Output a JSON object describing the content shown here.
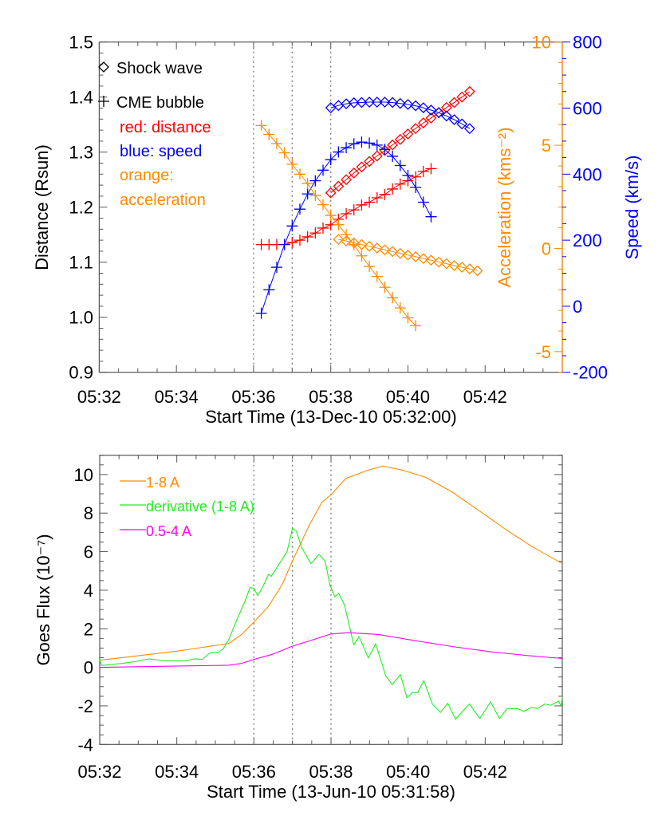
{
  "chart_data": [
    {
      "type": "scatter",
      "xlabel": "Start Time (13-Dec-10 05:32:00)",
      "x_unit": "minutes after 05:32:00",
      "xlim": [
        0,
        12
      ],
      "xticks": [
        {
          "v": 0,
          "label": "05:32"
        },
        {
          "v": 2,
          "label": "05:34"
        },
        {
          "v": 4,
          "label": "05:36"
        },
        {
          "v": 6,
          "label": "05:38"
        },
        {
          "v": 8,
          "label": "05:40"
        },
        {
          "v": 10,
          "label": "05:42"
        }
      ],
      "vlines": [
        4,
        5,
        6
      ],
      "axes": {
        "distance": {
          "label": "Distance (Rsun)",
          "lim": [
            0.9,
            1.5
          ],
          "ticks": [
            "0.9",
            "1.0",
            "1.1",
            "1.2",
            "1.3",
            "1.4",
            "1.5"
          ],
          "color": "#000000"
        },
        "acceleration": {
          "label": "Acceleration (kms⁻²)",
          "lim": [
            -6,
            10
          ],
          "ticks": [
            "-5",
            "0",
            "5",
            "10"
          ],
          "color": "#ff8a00"
        },
        "speed": {
          "label": "Speed (km/s)",
          "lim": [
            -200,
            800
          ],
          "ticks": [
            "-200",
            "0",
            "200",
            "400",
            "600",
            "800"
          ],
          "color": "#0000ff"
        }
      },
      "legend": {
        "shock": "Shock wave",
        "cme": "CME bubble",
        "red": "red: distance",
        "blue": "blue: speed",
        "orange1": "orange:",
        "orange2": "acceleration"
      },
      "series": [
        {
          "id": "cme-distance",
          "axis": "distance",
          "marker": "plus",
          "color": "#ff0000",
          "x": [
            4.2,
            4.4,
            4.6,
            4.8,
            5.0,
            5.2,
            5.4,
            5.6,
            5.8,
            6.0,
            6.2,
            6.4,
            6.6,
            6.8,
            7.0,
            7.2,
            7.4,
            7.6,
            7.8,
            8.0,
            8.2,
            8.4,
            8.6
          ],
          "y": [
            1.132,
            1.132,
            1.132,
            1.132,
            1.136,
            1.14,
            1.146,
            1.153,
            1.162,
            1.168,
            1.178,
            1.188,
            1.195,
            1.204,
            1.209,
            1.217,
            1.223,
            1.233,
            1.242,
            1.248,
            1.255,
            1.265,
            1.27
          ]
        },
        {
          "id": "shock-distance",
          "axis": "distance",
          "marker": "diamond",
          "color": "#ff0000",
          "x": [
            6.0,
            6.2,
            6.4,
            6.6,
            6.8,
            7.0,
            7.2,
            7.4,
            7.6,
            7.8,
            8.0,
            8.2,
            8.4,
            8.6,
            8.8,
            9.0,
            9.2,
            9.4,
            9.6
          ],
          "y": [
            1.226,
            1.238,
            1.25,
            1.262,
            1.273,
            1.283,
            1.293,
            1.303,
            1.313,
            1.323,
            1.333,
            1.343,
            1.353,
            1.362,
            1.372,
            1.381,
            1.39,
            1.4,
            1.41
          ]
        },
        {
          "id": "cme-speed",
          "axis": "speed",
          "marker": "plus",
          "color": "#0000ff",
          "x": [
            4.2,
            4.4,
            4.6,
            4.8,
            5.0,
            5.2,
            5.4,
            5.6,
            5.8,
            6.0,
            6.2,
            6.4,
            6.6,
            6.8,
            7.0,
            7.2,
            7.4,
            7.6,
            7.8,
            8.0,
            8.2,
            8.4,
            8.6
          ],
          "y": [
            -21,
            50,
            118,
            187,
            243,
            294,
            340,
            380,
            412,
            444,
            467,
            480,
            492,
            497,
            494,
            488,
            475,
            454,
            426,
            396,
            360,
            315,
            271
          ]
        },
        {
          "id": "shock-speed",
          "axis": "speed",
          "marker": "diamond",
          "color": "#0000ff",
          "x": [
            6.0,
            6.2,
            6.4,
            6.6,
            6.8,
            7.0,
            7.2,
            7.4,
            7.6,
            7.8,
            8.0,
            8.2,
            8.4,
            8.6,
            8.8,
            9.0,
            9.2,
            9.4,
            9.6
          ],
          "y": [
            601,
            608,
            613,
            616,
            617,
            618,
            618,
            618,
            617,
            614,
            611,
            607,
            601,
            594,
            586,
            576,
            565,
            552,
            538
          ]
        },
        {
          "id": "cme-acceleration",
          "axis": "acceleration",
          "marker": "plus",
          "color": "#ff8a00",
          "x": [
            4.2,
            4.4,
            4.6,
            4.8,
            5.0,
            5.2,
            5.4,
            5.6,
            5.8,
            6.0,
            6.2,
            6.4,
            6.6,
            6.8,
            7.0,
            7.2,
            7.4,
            7.6,
            7.8,
            8.0,
            8.2
          ],
          "y": [
            5.96,
            5.53,
            5.08,
            4.63,
            4.08,
            3.6,
            3.15,
            2.57,
            2.12,
            1.6,
            1.15,
            0.67,
            0.18,
            -0.36,
            -0.87,
            -1.36,
            -1.88,
            -2.39,
            -2.88,
            -3.36,
            -3.74
          ]
        },
        {
          "id": "shock-acceleration",
          "axis": "acceleration",
          "marker": "diamond",
          "color": "#ff8a00",
          "x": [
            6.2,
            6.4,
            6.6,
            6.8,
            7.0,
            7.2,
            7.4,
            7.6,
            7.8,
            8.0,
            8.2,
            8.4,
            8.6,
            8.8,
            9.0,
            9.2,
            9.4,
            9.6,
            9.8
          ],
          "y": [
            0.44,
            0.36,
            0.27,
            0.19,
            0.1,
            0.02,
            -0.07,
            -0.15,
            -0.24,
            -0.32,
            -0.4,
            -0.49,
            -0.57,
            -0.66,
            -0.74,
            -0.83,
            -0.91,
            -0.99,
            -1.08
          ]
        }
      ]
    },
    {
      "type": "line",
      "xlabel": "Start Time (13-Jun-10 05:31:58)",
      "ylabel": "Goes Flux (10⁻⁷)",
      "x_unit": "minutes after 05:32",
      "xlim": [
        0,
        12
      ],
      "ylim": [
        -4,
        11
      ],
      "xticks": [
        {
          "v": 0,
          "label": "05:32"
        },
        {
          "v": 2,
          "label": "05:34"
        },
        {
          "v": 4,
          "label": "05:36"
        },
        {
          "v": 6,
          "label": "05:38"
        },
        {
          "v": 8,
          "label": "05:40"
        },
        {
          "v": 10,
          "label": "05:42"
        }
      ],
      "yticks": [
        "-4",
        "-2",
        "0",
        "2",
        "4",
        "6",
        "8",
        "10"
      ],
      "vlines": [
        4,
        5,
        6
      ],
      "series": [
        {
          "name": "1-8 A",
          "color": "#ff8a00",
          "x": [
            0,
            1.97,
            3.35,
            3.69,
            4.0,
            4.38,
            4.73,
            5.0,
            5.42,
            5.76,
            6.0,
            6.38,
            6.94,
            7.35,
            7.83,
            8.45,
            9.14,
            9.83,
            10.52,
            11.2,
            12.0
          ],
          "y": [
            0.37,
            0.83,
            1.24,
            1.72,
            2.35,
            3.17,
            4.28,
            5.52,
            7.31,
            8.55,
            8.95,
            9.79,
            10.21,
            10.44,
            10.24,
            9.86,
            9.1,
            8.14,
            7.17,
            6.28,
            5.38
          ]
        },
        {
          "name": "derivative (1-8 A)",
          "color": "#22ee22",
          "x": [
            0,
            0.05,
            0.59,
            0.93,
            1.28,
            1.69,
            2.24,
            2.45,
            2.66,
            2.86,
            3.07,
            3.21,
            3.35,
            3.56,
            3.76,
            3.9,
            4.0,
            4.1,
            4.24,
            4.38,
            4.45,
            4.66,
            4.86,
            5.0,
            5.1,
            5.24,
            5.48,
            5.69,
            5.85,
            5.97,
            6.1,
            6.2,
            6.35,
            6.59,
            6.73,
            6.97,
            7.16,
            7.42,
            7.59,
            7.8,
            7.97,
            8.11,
            8.25,
            8.41,
            8.63,
            8.84,
            9.03,
            9.23,
            9.59,
            9.86,
            10.14,
            10.37,
            10.57,
            10.84,
            11.0,
            11.21,
            11.35,
            11.55,
            11.7,
            11.9,
            11.97,
            12.0
          ],
          "y": [
            0.4,
            0.1,
            0.21,
            0.3,
            0.44,
            0.34,
            0.34,
            0.44,
            0.41,
            0.76,
            0.76,
            0.97,
            1.45,
            2.48,
            3.38,
            4.14,
            4.1,
            3.72,
            4.21,
            4.83,
            4.72,
            5.38,
            6.0,
            7.2,
            7.07,
            6.21,
            5.38,
            5.86,
            5.5,
            4.28,
            3.66,
            3.84,
            3.24,
            1.17,
            1.59,
            0.48,
            1.22,
            -0.44,
            -0.89,
            -0.37,
            -1.58,
            -1.31,
            -1.31,
            -0.69,
            -1.9,
            -2.34,
            -1.86,
            -2.69,
            -1.9,
            -2.65,
            -1.79,
            -2.65,
            -2.14,
            -2.14,
            -2.28,
            -2.07,
            -2.14,
            -1.9,
            -1.97,
            -1.76,
            -2.0,
            -1.52
          ]
        },
        {
          "name": "0.5-4 A",
          "color": "#ff00ff",
          "x": [
            0,
            3.35,
            3.69,
            4.0,
            4.5,
            5.0,
            5.5,
            6.0,
            6.44,
            7.21,
            8.11,
            9.14,
            10.18,
            11.2,
            12.0
          ],
          "y": [
            0,
            0.11,
            0.21,
            0.41,
            0.69,
            1.1,
            1.41,
            1.73,
            1.8,
            1.71,
            1.41,
            1.08,
            0.8,
            0.59,
            0.46
          ]
        }
      ]
    }
  ]
}
